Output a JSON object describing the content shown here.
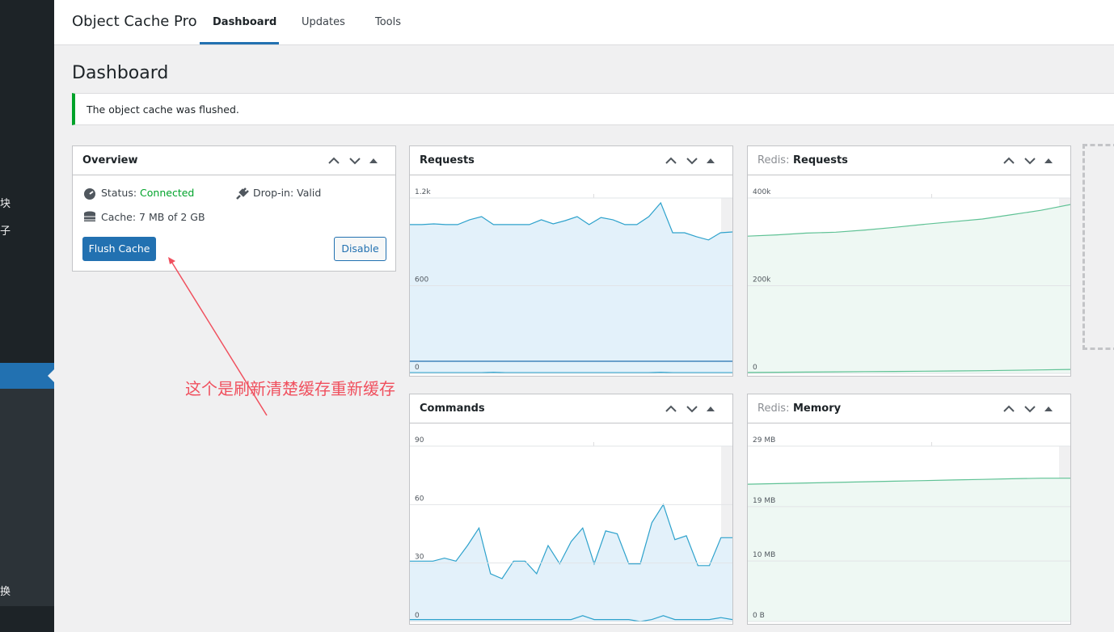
{
  "nav": {
    "title": "Object Cache Pro",
    "tabs": [
      "Dashboard",
      "Updates",
      "Tools"
    ]
  },
  "sidebar": [
    "块",
    "子",
    "换"
  ],
  "page_title": "Dashboard",
  "notice": "The object cache was flushed.",
  "overview": {
    "title": "Overview",
    "status_label": "Status:",
    "status_value": "Connected",
    "dropin": "Drop-in: Valid",
    "cache": "Cache: 7 MB of 2 GB",
    "buttons": [
      "Flush Cache",
      "Disable"
    ]
  },
  "annotation": "这个是刷新清楚缓存重新缓存",
  "chart_data": [
    {
      "type": "line",
      "title": "Requests",
      "ylim": [
        0,
        1200
      ],
      "yticks": [
        0,
        600,
        {
          "value": 1200,
          "label": "1.2k"
        }
      ],
      "grid": true,
      "series": [
        {
          "color": "#2ea2cc",
          "fill": "#e3f1fa",
          "values": [
            1018,
            1018,
            1023,
            1018,
            1018,
            1051,
            1073,
            1018,
            1018,
            1018,
            1018,
            1051,
            1023,
            1045,
            1073,
            1018,
            1067,
            1051,
            1018,
            1018,
            1073,
            1167,
            962,
            962,
            935,
            913,
            962,
            968
          ]
        },
        {
          "color": "#2271b1",
          "values": [
            83,
            83,
            83,
            83,
            83,
            83,
            83,
            83,
            83,
            83,
            83,
            83,
            83,
            83,
            83,
            83,
            83,
            83,
            83,
            83,
            83,
            83,
            83,
            83,
            83,
            83,
            83,
            83
          ]
        },
        {
          "color": "#2ea2cc",
          "values": [
            5,
            5,
            5,
            5,
            5,
            5,
            5,
            8,
            5,
            5,
            5,
            5,
            5,
            5,
            5,
            5,
            5,
            5,
            5,
            5,
            5,
            8,
            5,
            5,
            5,
            5,
            5,
            5
          ]
        }
      ]
    },
    {
      "type": "line",
      "title_prefix": "Redis:",
      "title": "Requests",
      "ylim": [
        0,
        400000
      ],
      "yticks": [
        0,
        {
          "value": 200000,
          "label": "200k"
        },
        {
          "value": 400000,
          "label": "400k"
        }
      ],
      "grid": true,
      "series": [
        {
          "color": "#5fc295",
          "fill": "#eef8f3",
          "values": [
            313000,
            316000,
            320000,
            322000,
            327000,
            333000,
            340000,
            346000,
            352000,
            362000,
            372000,
            385000
          ]
        },
        {
          "color": "#5fc295",
          "values": [
            2000,
            2500,
            3000,
            3500,
            4000,
            4500,
            5000,
            5500,
            6000,
            7000,
            8000,
            9000
          ]
        }
      ]
    },
    {
      "type": "line",
      "title": "Commands",
      "ylim": [
        0,
        90
      ],
      "yticks": [
        0,
        30,
        60,
        90
      ],
      "grid": true,
      "series": [
        {
          "color": "#2ea2cc",
          "fill": "#e3f1fa",
          "values": [
            31,
            31,
            31,
            32.5,
            31,
            39,
            48,
            24.5,
            22,
            31,
            31,
            24.5,
            39,
            29.6,
            41,
            48,
            29.6,
            46.5,
            45,
            29.6,
            29.6,
            50.7,
            60,
            42,
            44,
            28.7,
            28.7,
            43,
            43
          ]
        },
        {
          "color": "#2ea2cc",
          "values": [
            1,
            1,
            1,
            1,
            1,
            1,
            1,
            1,
            1,
            1,
            1,
            1,
            1,
            1,
            1,
            3,
            1,
            1,
            1,
            1,
            0,
            1,
            3,
            1,
            1,
            1,
            1,
            2,
            1
          ]
        }
      ]
    },
    {
      "type": "line",
      "title_prefix": "Redis:",
      "title": "Memory",
      "ylim": [
        0,
        29
      ],
      "yticks": [
        {
          "value": 0,
          "label": "0 B"
        },
        {
          "value": 10,
          "label": "10 MB"
        },
        {
          "value": 19,
          "label": "19 MB"
        },
        {
          "value": 29,
          "label": "29 MB"
        }
      ],
      "grid": true,
      "series": [
        {
          "color": "#5fc295",
          "fill": "#eef8f3",
          "values": [
            22.7,
            22.8,
            22.9,
            23,
            23.1,
            23.2,
            23.3,
            23.4,
            23.5,
            23.6,
            23.7,
            23.7
          ]
        }
      ]
    }
  ]
}
